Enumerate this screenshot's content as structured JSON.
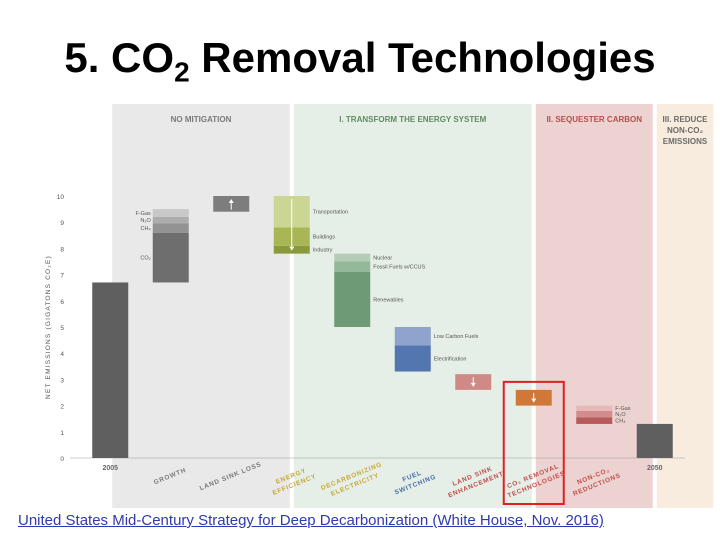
{
  "slide": {
    "title_main": "5. CO",
    "title_sub": "2",
    "title_rest": " Removal Technologies",
    "footer_link": "United States Mid-Century Strategy for Deep Decarbonization (White House, Nov. 2016)"
  },
  "colors": {
    "panel_no_mitigation": "#e9e9e9",
    "panel_transform": "#e5efe7",
    "panel_sequester": "#ecd2d0",
    "panel_reduce": "#f8ecdf",
    "highlight_box": "#e02020"
  },
  "chart_data": {
    "type": "bar",
    "subtype": "waterfall",
    "ylabel": "NET EMISSIONS (GIGATONS CO₂E)",
    "ylim": [
      0,
      10
    ],
    "yticks": [
      0,
      1,
      2,
      3,
      4,
      5,
      6,
      7,
      8,
      9,
      10
    ],
    "grid": false,
    "sections": [
      {
        "label_lines": [
          "NO MITIGATION"
        ],
        "from": 0.5,
        "to": 3.5,
        "color": "#7a7a7a"
      },
      {
        "label_lines": [
          "I. TRANSFORM THE ENERGY SYSTEM"
        ],
        "from": 3.5,
        "to": 7.5,
        "color": "#5f8c5f"
      },
      {
        "label_lines": [
          "II. SEQUESTER CARBON"
        ],
        "from": 7.5,
        "to": 9.5,
        "color": "#b5504a"
      },
      {
        "label_lines": [
          "III. REDUCE",
          "NON-CO₂",
          "EMISSIONS"
        ],
        "from": 9.5,
        "to": 10.5,
        "color": "#6b6b6b"
      }
    ],
    "categories": [
      [
        "2005"
      ],
      [
        "GROWTH"
      ],
      [
        "LAND SINK LOSS"
      ],
      [
        "ENERGY",
        "EFFICIENCY"
      ],
      [
        "DECARBONIZING",
        "ELECTRICITY"
      ],
      [
        "FUEL",
        "SWITCHING"
      ],
      [
        "LAND SINK",
        "ENHANCEMENT"
      ],
      [
        "CO₂ REMOVAL",
        "TECHNOLOGIES"
      ],
      [
        "NON-CO₂",
        "REDUCTIONS"
      ],
      [
        "2050"
      ]
    ],
    "category_colors": [
      "#666666",
      "#7a7a7a",
      "#7a7a7a",
      "#c9a83a",
      "#c9a83a",
      "#4a6ea8",
      "#c0504d",
      "#c0504d",
      "#c0504d",
      "#666666"
    ],
    "bars": [
      {
        "category": "2005",
        "base": 0,
        "top": 6.7,
        "segments": [
          {
            "from": 0,
            "to": 6.7,
            "color": "#5f5f5f"
          }
        ]
      },
      {
        "category": "GROWTH",
        "base": 6.7,
        "top": 9.5,
        "segments": [
          {
            "from": 6.7,
            "to": 8.6,
            "color": "#6e6e6e",
            "label": "CO₂"
          },
          {
            "from": 8.6,
            "to": 8.95,
            "color": "#939393",
            "label": "CH₄"
          },
          {
            "from": 8.95,
            "to": 9.2,
            "color": "#adadad",
            "label": "N₂O"
          },
          {
            "from": 9.2,
            "to": 9.5,
            "color": "#c8c8c8",
            "label": "F-Gas"
          }
        ]
      },
      {
        "category": "LAND SINK LOSS",
        "base": 9.4,
        "top": 10.0,
        "arrow": "up",
        "segments": [
          {
            "from": 9.4,
            "to": 10.0,
            "color": "#7d7d7d"
          }
        ]
      },
      {
        "category": "ENERGY EFFICIENCY",
        "base": 7.8,
        "top": 10.0,
        "arrow": "down",
        "segments": [
          {
            "from": 7.8,
            "to": 8.1,
            "color": "#8a9a3a",
            "label": "Industry"
          },
          {
            "from": 8.1,
            "to": 8.8,
            "color": "#a8b655",
            "label": "Buildings"
          },
          {
            "from": 8.8,
            "to": 10.0,
            "color": "#cbd594",
            "label": "Transportation"
          }
        ]
      },
      {
        "category": "DECARBONIZING ELECTRICITY",
        "base": 5.0,
        "top": 7.8,
        "segments": [
          {
            "from": 5.0,
            "to": 7.1,
            "color": "#6f9a76",
            "label": "Renewables"
          },
          {
            "from": 7.1,
            "to": 7.5,
            "color": "#94b89a",
            "label": "Fossil Fuels w/CCUS"
          },
          {
            "from": 7.5,
            "to": 7.8,
            "color": "#b3cdb6",
            "label": "Nuclear"
          }
        ]
      },
      {
        "category": "FUEL SWITCHING",
        "base": 3.3,
        "top": 5.0,
        "segments": [
          {
            "from": 3.3,
            "to": 4.3,
            "color": "#5476b0",
            "label": "Electrification"
          },
          {
            "from": 4.3,
            "to": 5.0,
            "color": "#8ea4cc",
            "label": "Low Carbon Fuels"
          }
        ]
      },
      {
        "category": "LAND SINK ENHANCEMENT",
        "base": 2.6,
        "top": 3.2,
        "arrow": "down",
        "segments": [
          {
            "from": 2.6,
            "to": 3.2,
            "color": "#cf8a86"
          }
        ]
      },
      {
        "category": "CO₂ REMOVAL TECHNOLOGIES",
        "base": 2.0,
        "top": 2.6,
        "arrow": "down",
        "highlight": true,
        "segments": [
          {
            "from": 2.0,
            "to": 2.6,
            "color": "#d0773a"
          }
        ]
      },
      {
        "category": "NON-CO₂ REDUCTIONS",
        "base": 1.3,
        "top": 2.0,
        "segments": [
          {
            "from": 1.3,
            "to": 1.55,
            "color": "#b85a5a",
            "label": "CH₄"
          },
          {
            "from": 1.55,
            "to": 1.8,
            "color": "#d28c8c",
            "label": "N₂O"
          },
          {
            "from": 1.8,
            "to": 2.0,
            "color": "#e8b8b8",
            "label": "F-Gas"
          }
        ]
      },
      {
        "category": "2050",
        "base": 0,
        "top": 1.3,
        "segments": [
          {
            "from": 0,
            "to": 1.3,
            "color": "#5f5f5f"
          }
        ]
      }
    ]
  }
}
